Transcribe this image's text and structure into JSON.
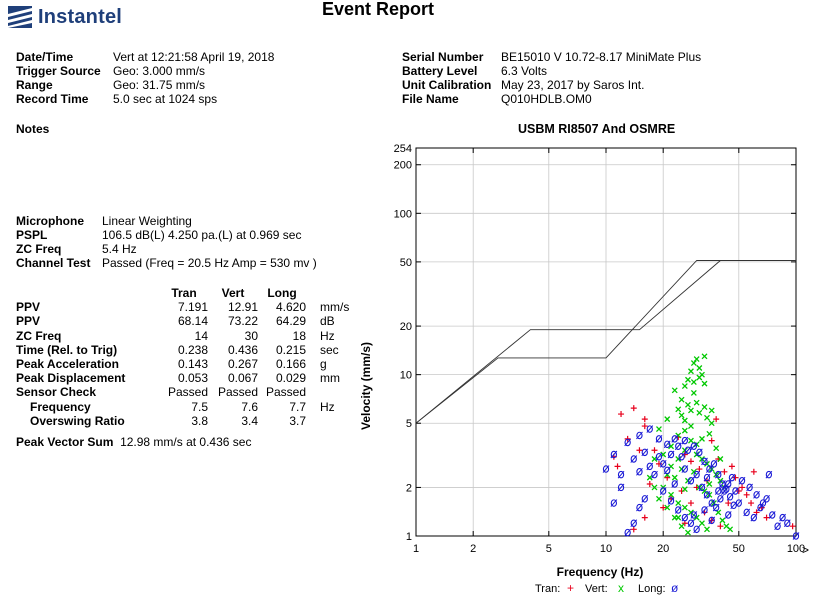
{
  "header": {
    "logo_text": "Instantel",
    "title": "Event Report"
  },
  "event": {
    "left": [
      {
        "label": "Date/Time",
        "value": "Vert at 12:21:58 April 19, 2018"
      },
      {
        "label": "Trigger Source",
        "value": "Geo: 3.000 mm/s"
      },
      {
        "label": "Range",
        "value": "Geo: 31.75 mm/s"
      },
      {
        "label": "Record Time",
        "value": "5.0 sec at 1024 sps"
      }
    ],
    "right": [
      {
        "label": "Serial Number",
        "value": "BE15010 V 10.72-8.17 MiniMate Plus"
      },
      {
        "label": "Battery Level",
        "value": "6.3 Volts"
      },
      {
        "label": "Unit Calibration",
        "value": "May 23, 2017 by Saros Int."
      },
      {
        "label": "File Name",
        "value": "Q010HDLB.OM0"
      }
    ]
  },
  "notes_label": "Notes",
  "microphone": [
    {
      "label": "Microphone",
      "value": "Linear Weighting"
    },
    {
      "label": "PSPL",
      "value": "106.5 dB(L)  4.250 pa.(L) at 0.969 sec"
    },
    {
      "label": "ZC Freq",
      "value": "5.4 Hz"
    },
    {
      "label": "Channel Test",
      "value": "Passed (Freq = 20.5 Hz Amp = 530 mv )"
    }
  ],
  "table": {
    "headers": [
      "Tran",
      "Vert",
      "Long"
    ],
    "rows": [
      {
        "label": "PPV",
        "tran": "7.191",
        "vert": "12.91",
        "long": "4.620",
        "unit": "mm/s",
        "indent": false
      },
      {
        "label": "PPV",
        "tran": "68.14",
        "vert": "73.22",
        "long": "64.29",
        "unit": "dB",
        "indent": false
      },
      {
        "label": "ZC Freq",
        "tran": "14",
        "vert": "30",
        "long": "18",
        "unit": "Hz",
        "indent": false
      },
      {
        "label": "Time (Rel. to Trig)",
        "tran": "0.238",
        "vert": "0.436",
        "long": "0.215",
        "unit": "sec",
        "indent": false
      },
      {
        "label": "Peak Acceleration",
        "tran": "0.143",
        "vert": "0.267",
        "long": "0.166",
        "unit": "g",
        "indent": false
      },
      {
        "label": "Peak Displacement",
        "tran": "0.053",
        "vert": "0.067",
        "long": "0.029",
        "unit": "mm",
        "indent": false
      },
      {
        "label": "Sensor Check",
        "tran": "Passed",
        "vert": "Passed",
        "long": "Passed",
        "unit": "",
        "indent": false
      },
      {
        "label": "Frequency",
        "tran": "7.5",
        "vert": "7.6",
        "long": "7.7",
        "unit": "Hz",
        "indent": true
      },
      {
        "label": "Overswing Ratio",
        "tran": "3.8",
        "vert": "3.4",
        "long": "3.7",
        "unit": "",
        "indent": true
      }
    ]
  },
  "peak_vector_sum": {
    "label": "Peak Vector Sum",
    "value": "12.98 mm/s at 0.436 sec"
  },
  "chart_data": {
    "type": "scatter",
    "title": "USBM RI8507 And OSMRE",
    "xlabel": "Frequency (Hz)",
    "ylabel": "Velocity (mm/s)",
    "x_scale": "log",
    "y_scale": "log",
    "xlim": [
      1,
      100
    ],
    "ylim": [
      1,
      254
    ],
    "x_ticks": [
      "1",
      "2",
      "5",
      "10",
      "20",
      "50",
      "100"
    ],
    "x_tick_values": [
      1,
      2,
      5,
      10,
      20,
      50,
      100
    ],
    "y_ticks": [
      "1",
      "2",
      "5",
      "10",
      "20",
      "50",
      "100",
      "200",
      "254"
    ],
    "y_tick_values": [
      1,
      2,
      5,
      10,
      20,
      50,
      100,
      200,
      254
    ],
    "x_axis_arrow": ">",
    "grid": true,
    "legend_placement": "bottom",
    "legend": [
      {
        "name": "Tran:",
        "marker": "+",
        "color": "#e8001c"
      },
      {
        "name": "Vert:",
        "marker": "x",
        "color": "#00c800"
      },
      {
        "name": "Long:",
        "marker": "ø",
        "color": "#1a1ad6"
      }
    ],
    "limit_curves": [
      {
        "name": "upper",
        "points": [
          [
            1,
            5
          ],
          [
            4,
            19
          ],
          [
            15,
            19
          ],
          [
            40,
            51
          ],
          [
            100,
            51
          ]
        ]
      },
      {
        "name": "lower",
        "points": [
          [
            1,
            5
          ],
          [
            2.7,
            12.7
          ],
          [
            10,
            12.7
          ],
          [
            30,
            51
          ],
          [
            100,
            51
          ]
        ]
      }
    ],
    "series": [
      {
        "name": "Tran",
        "marker": "+",
        "color": "#e8001c",
        "points": [
          [
            12,
            5.7
          ],
          [
            14,
            6.2
          ],
          [
            16,
            5.3
          ],
          [
            13,
            4.0
          ],
          [
            11,
            3.1
          ],
          [
            11.5,
            2.7
          ],
          [
            15,
            3.4
          ],
          [
            18,
            3.4
          ],
          [
            19,
            2.8
          ],
          [
            21,
            2.3
          ],
          [
            24,
            4.1
          ],
          [
            26,
            3.2
          ],
          [
            28,
            2.9
          ],
          [
            31,
            2.6
          ],
          [
            34,
            2.2
          ],
          [
            36,
            3.9
          ],
          [
            39,
            3.0
          ],
          [
            42,
            2.5
          ],
          [
            46,
            2.7
          ],
          [
            48,
            2.3
          ],
          [
            52,
            2.0
          ],
          [
            55,
            1.8
          ],
          [
            58,
            1.6
          ],
          [
            62,
            1.4
          ],
          [
            66,
            1.5
          ],
          [
            70,
            1.3
          ],
          [
            14,
            1.1
          ],
          [
            16,
            1.3
          ],
          [
            20,
            1.5
          ],
          [
            22,
            1.7
          ],
          [
            28,
            1.6
          ],
          [
            33,
            1.4
          ],
          [
            36,
            1.25
          ],
          [
            40,
            1.15
          ],
          [
            44,
            1.6
          ],
          [
            50,
            1.9
          ],
          [
            60,
            2.5
          ],
          [
            16,
            4.8
          ],
          [
            38,
            5.3
          ],
          [
            17,
            2.1
          ],
          [
            25,
            1.9
          ],
          [
            96,
            1.15
          ],
          [
            30,
            2.0
          ],
          [
            26,
            1.2
          ]
        ]
      },
      {
        "name": "Vert",
        "marker": "x",
        "color": "#00c800",
        "points": [
          [
            25,
            7.0
          ],
          [
            26,
            8.5
          ],
          [
            27,
            9.3
          ],
          [
            28,
            10.5
          ],
          [
            29,
            11.8
          ],
          [
            30,
            12.5
          ],
          [
            31,
            11.0
          ],
          [
            32,
            10.0
          ],
          [
            33,
            8.8
          ],
          [
            29,
            7.7
          ],
          [
            27,
            6.5
          ],
          [
            25,
            5.6
          ],
          [
            24,
            6.1
          ],
          [
            26,
            5.2
          ],
          [
            28,
            6.0
          ],
          [
            30,
            6.7
          ],
          [
            31,
            5.8
          ],
          [
            33,
            6.3
          ],
          [
            34,
            5.4
          ],
          [
            36,
            5.0
          ],
          [
            35,
            4.3
          ],
          [
            32,
            4.0
          ],
          [
            30,
            3.7
          ],
          [
            28,
            3.9
          ],
          [
            26,
            3.4
          ],
          [
            24,
            3.0
          ],
          [
            22,
            2.7
          ],
          [
            21,
            2.4
          ],
          [
            20,
            2.0
          ],
          [
            22,
            1.8
          ],
          [
            24,
            1.6
          ],
          [
            26,
            1.5
          ],
          [
            28,
            1.4
          ],
          [
            30,
            1.3
          ],
          [
            32,
            1.2
          ],
          [
            34,
            1.1
          ],
          [
            27,
            1.05
          ],
          [
            25,
            1.15
          ],
          [
            23,
            1.3
          ],
          [
            21,
            1.5
          ],
          [
            19,
            1.7
          ],
          [
            18,
            2.0
          ],
          [
            17,
            2.3
          ],
          [
            20,
            3.2
          ],
          [
            22,
            3.6
          ],
          [
            24,
            4.2
          ],
          [
            26,
            4.5
          ],
          [
            28,
            4.8
          ],
          [
            30,
            3.2
          ],
          [
            32,
            3.0
          ],
          [
            34,
            2.8
          ],
          [
            36,
            2.6
          ],
          [
            38,
            2.4
          ],
          [
            40,
            2.2
          ],
          [
            42,
            2.0
          ],
          [
            35,
            1.8
          ],
          [
            37,
            1.6
          ],
          [
            39,
            1.4
          ],
          [
            41,
            1.25
          ],
          [
            43,
            1.15
          ],
          [
            45,
            1.1
          ],
          [
            38,
            3.5
          ],
          [
            40,
            3.0
          ],
          [
            36,
            6.0
          ],
          [
            29,
            9.0
          ],
          [
            31,
            9.6
          ],
          [
            23,
            8.0
          ],
          [
            21,
            5.3
          ],
          [
            19,
            4.6
          ],
          [
            18,
            3.0
          ],
          [
            33,
            13.0
          ],
          [
            27,
            2.2
          ],
          [
            29,
            2.5
          ],
          [
            31,
            2.0
          ],
          [
            33,
            1.9
          ],
          [
            35,
            2.1
          ],
          [
            25,
            2.6
          ],
          [
            23,
            2.3
          ],
          [
            24,
            1.3
          ],
          [
            26,
            1.95
          ]
        ]
      },
      {
        "name": "Long",
        "marker": "ø",
        "color": "#1a1ad6",
        "points": [
          [
            13,
            3.8
          ],
          [
            14,
            3.0
          ],
          [
            16,
            3.3
          ],
          [
            17,
            2.7
          ],
          [
            18,
            2.4
          ],
          [
            20,
            2.8
          ],
          [
            22,
            3.2
          ],
          [
            24,
            3.6
          ],
          [
            26,
            2.6
          ],
          [
            28,
            2.2
          ],
          [
            30,
            2.4
          ],
          [
            32,
            2.0
          ],
          [
            34,
            1.8
          ],
          [
            36,
            1.6
          ],
          [
            38,
            1.5
          ],
          [
            40,
            1.7
          ],
          [
            42,
            1.9
          ],
          [
            44,
            2.1
          ],
          [
            46,
            2.3
          ],
          [
            48,
            1.9
          ],
          [
            50,
            1.6
          ],
          [
            55,
            1.4
          ],
          [
            60,
            1.3
          ],
          [
            65,
            1.5
          ],
          [
            70,
            1.7
          ],
          [
            75,
            1.35
          ],
          [
            80,
            1.15
          ],
          [
            85,
            1.3
          ],
          [
            90,
            1.2
          ],
          [
            100,
            1.0
          ],
          [
            13,
            1.05
          ],
          [
            14,
            1.2
          ],
          [
            15,
            1.5
          ],
          [
            16,
            1.7
          ],
          [
            11,
            1.6
          ],
          [
            12,
            2.0
          ],
          [
            10,
            2.6
          ],
          [
            11,
            3.2
          ],
          [
            12,
            2.4
          ],
          [
            15,
            4.2
          ],
          [
            17,
            4.6
          ],
          [
            19,
            4.0
          ],
          [
            21,
            3.7
          ],
          [
            23,
            4.0
          ],
          [
            25,
            3.1
          ],
          [
            27,
            3.4
          ],
          [
            29,
            3.6
          ],
          [
            31,
            3.3
          ],
          [
            33,
            2.9
          ],
          [
            35,
            2.6
          ],
          [
            37,
            2.8
          ],
          [
            39,
            2.4
          ],
          [
            41,
            2.1
          ],
          [
            43,
            1.95
          ],
          [
            45,
            1.75
          ],
          [
            47,
            1.55
          ],
          [
            52,
            2.2
          ],
          [
            57,
            2.0
          ],
          [
            62,
            1.8
          ],
          [
            67,
            1.6
          ],
          [
            72,
            2.4
          ],
          [
            20,
            1.9
          ],
          [
            22,
            1.65
          ],
          [
            24,
            1.45
          ],
          [
            26,
            1.3
          ],
          [
            28,
            1.2
          ],
          [
            30,
            1.1
          ],
          [
            19,
            3.1
          ],
          [
            21,
            2.55
          ],
          [
            26,
            3.9
          ],
          [
            34,
            2.3
          ],
          [
            44,
            1.35
          ],
          [
            36,
            1.25
          ],
          [
            29,
            1.35
          ],
          [
            15,
            2.5
          ],
          [
            23,
            2.1
          ],
          [
            33,
            1.45
          ],
          [
            39,
            1.9
          ]
        ]
      }
    ]
  }
}
